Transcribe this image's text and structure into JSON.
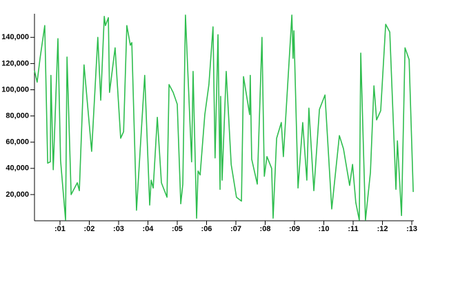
{
  "chart_data": {
    "type": "line",
    "color": "#2ebd4e",
    "x": [
      0.13,
      0.22,
      0.32,
      0.48,
      0.58,
      0.67,
      0.69,
      0.77,
      0.93,
      1.02,
      1.19,
      1.24,
      1.38,
      1.59,
      1.66,
      1.82,
      2.08,
      2.29,
      2.39,
      2.51,
      2.55,
      2.65,
      2.69,
      2.88,
      3.07,
      3.17,
      3.28,
      3.4,
      3.45,
      3.61,
      3.89,
      4.06,
      4.11,
      4.18,
      4.32,
      4.46,
      4.65,
      4.72,
      4.86,
      5.0,
      5.12,
      5.19,
      5.28,
      5.49,
      5.54,
      5.66,
      5.71,
      5.78,
      5.94,
      6.08,
      6.22,
      6.29,
      6.39,
      6.46,
      6.48,
      6.53,
      6.67,
      6.84,
      7.02,
      7.19,
      7.26,
      7.47,
      7.49,
      7.54,
      7.73,
      7.89,
      7.97,
      8.06,
      8.22,
      8.27,
      8.39,
      8.55,
      8.62,
      8.91,
      8.95,
      8.98,
      9.12,
      9.28,
      9.42,
      9.49,
      9.66,
      9.85,
      10.04,
      10.27,
      10.53,
      10.67,
      10.88,
      10.98,
      11.09,
      11.21,
      11.26,
      11.42,
      11.59,
      11.71,
      11.8,
      11.94,
      12.11,
      12.25,
      12.46,
      12.51,
      12.65,
      12.77,
      12.91,
      13.05
    ],
    "values": [
      114700,
      105800,
      124000,
      149000,
      44000,
      45000,
      111000,
      39000,
      139000,
      46000,
      500,
      125000,
      20000,
      29000,
      23000,
      119000,
      53000,
      140000,
      92000,
      156000,
      149000,
      155000,
      98000,
      132000,
      63000,
      68000,
      149000,
      134000,
      136000,
      8000,
      111000,
      12000,
      31000,
      25000,
      79000,
      29000,
      18000,
      104000,
      98000,
      89000,
      13000,
      28000,
      157000,
      45000,
      114000,
      2000,
      38000,
      35000,
      81000,
      104000,
      148000,
      48000,
      142000,
      24000,
      95000,
      31000,
      114000,
      43000,
      18000,
      15000,
      110000,
      81000,
      111000,
      47000,
      28000,
      140000,
      34000,
      49000,
      40000,
      2000,
      63000,
      75000,
      49000,
      157000,
      124000,
      145000,
      25000,
      75000,
      31000,
      86000,
      23000,
      85000,
      96000,
      9000,
      65000,
      55000,
      27000,
      43000,
      14000,
      500,
      128000,
      500,
      37000,
      103000,
      77000,
      84000,
      150000,
      144000,
      24000,
      61000,
      4000,
      132000,
      123000,
      22000
    ],
    "xlim": [
      0.13,
      13.07
    ],
    "xticks": [
      {
        "value": 1,
        "label": ":01"
      },
      {
        "value": 2,
        "label": ":02"
      },
      {
        "value": 3,
        "label": ":03"
      },
      {
        "value": 4,
        "label": ":04"
      },
      {
        "value": 5,
        "label": ":05"
      },
      {
        "value": 6,
        "label": ":06"
      },
      {
        "value": 7,
        "label": ":07"
      },
      {
        "value": 8,
        "label": ":08"
      },
      {
        "value": 9,
        "label": ":09"
      },
      {
        "value": 10,
        "label": ":10"
      },
      {
        "value": 11,
        "label": ":11"
      },
      {
        "value": 12,
        "label": ":12"
      },
      {
        "value": 13,
        "label": ":13"
      }
    ],
    "ylim": [
      0,
      158000
    ],
    "yticks": [
      {
        "value": 20000,
        "label": "20,000"
      },
      {
        "value": 40000,
        "label": "40,000"
      },
      {
        "value": 60000,
        "label": "60,000"
      },
      {
        "value": 80000,
        "label": "80,000"
      },
      {
        "value": 100000,
        "label": "100,000"
      },
      {
        "value": 120000,
        "label": "120,000"
      },
      {
        "value": 140000,
        "label": "140,000"
      }
    ]
  }
}
